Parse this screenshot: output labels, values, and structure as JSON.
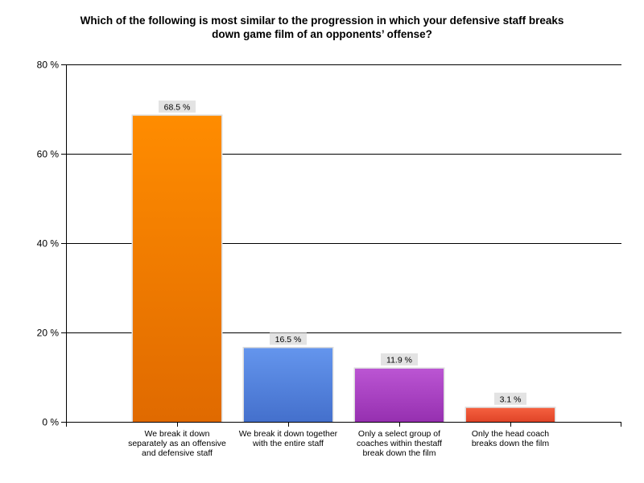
{
  "chart_data": {
    "type": "bar",
    "title": "Which of the following is most similar to the progression in which your defensive staff breaks down game film of an opponents’ offense?",
    "title_lines": [
      "Which of the following is most similar to the progression in which your defensive staff breaks",
      "down game film of an opponents’ offense?"
    ],
    "xlabel": "",
    "ylabel": "",
    "ylim": [
      0,
      80
    ],
    "yticks": [
      0,
      20,
      40,
      60,
      80
    ],
    "ytick_labels": [
      "0 %",
      "20 %",
      "40 %",
      "60 %",
      "80 %"
    ],
    "grid": true,
    "categories": [
      "We break it down separately as an offensive and defensive staff",
      "We break it down together with the entire staff",
      "Only a select group of coaches within thestaff break down the film",
      "Only the head coach breaks down the film"
    ],
    "category_lines": [
      [
        "We break it down",
        "separately as an offensive",
        "and defensive staff"
      ],
      [
        "We break it down together",
        "with the entire staff"
      ],
      [
        "Only a select group of",
        "coaches within thestaff",
        "break down the film"
      ],
      [
        "Only the head coach",
        "breaks down the film"
      ]
    ],
    "values": [
      68.5,
      16.5,
      11.9,
      3.1
    ],
    "data_labels": [
      "68.5 %",
      "16.5 %",
      "11.9 %",
      "3.1 %"
    ],
    "colors": [
      {
        "top": "#ff8c00",
        "bottom": "#e06a00"
      },
      {
        "top": "#6495ed",
        "bottom": "#4470cc"
      },
      {
        "top": "#bb55d3",
        "bottom": "#9630b0"
      },
      {
        "top": "#f5603f",
        "bottom": "#e04428"
      }
    ]
  }
}
